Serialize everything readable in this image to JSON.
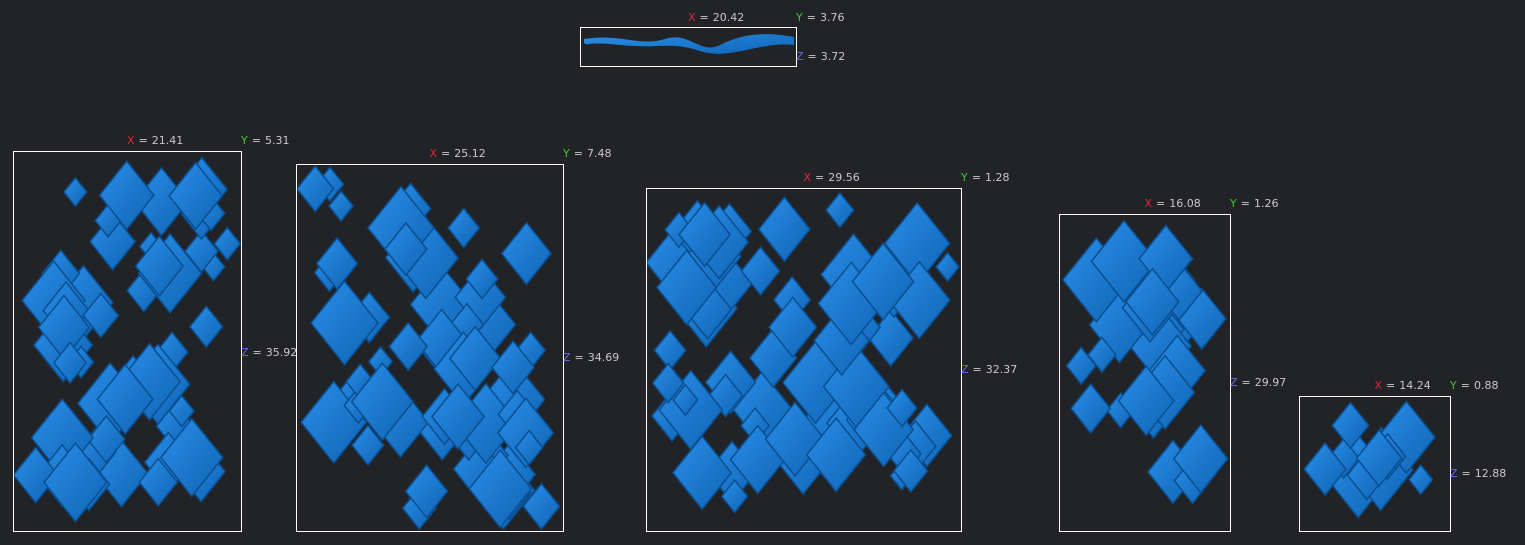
{
  "axes": {
    "x": "X",
    "y": "Y",
    "z": "Z"
  },
  "separator": "=",
  "objects": [
    {
      "x": 20.42,
      "y": 3.76,
      "z": 3.72
    },
    {
      "x": 21.41,
      "y": 5.31,
      "z": 35.92
    },
    {
      "x": 25.12,
      "y": 7.48,
      "z": 34.69
    },
    {
      "x": 29.56,
      "y": 1.28,
      "z": 32.37
    },
    {
      "x": 16.08,
      "y": 1.26,
      "z": 29.97
    },
    {
      "x": 14.24,
      "y": 0.88,
      "z": 12.88
    }
  ]
}
